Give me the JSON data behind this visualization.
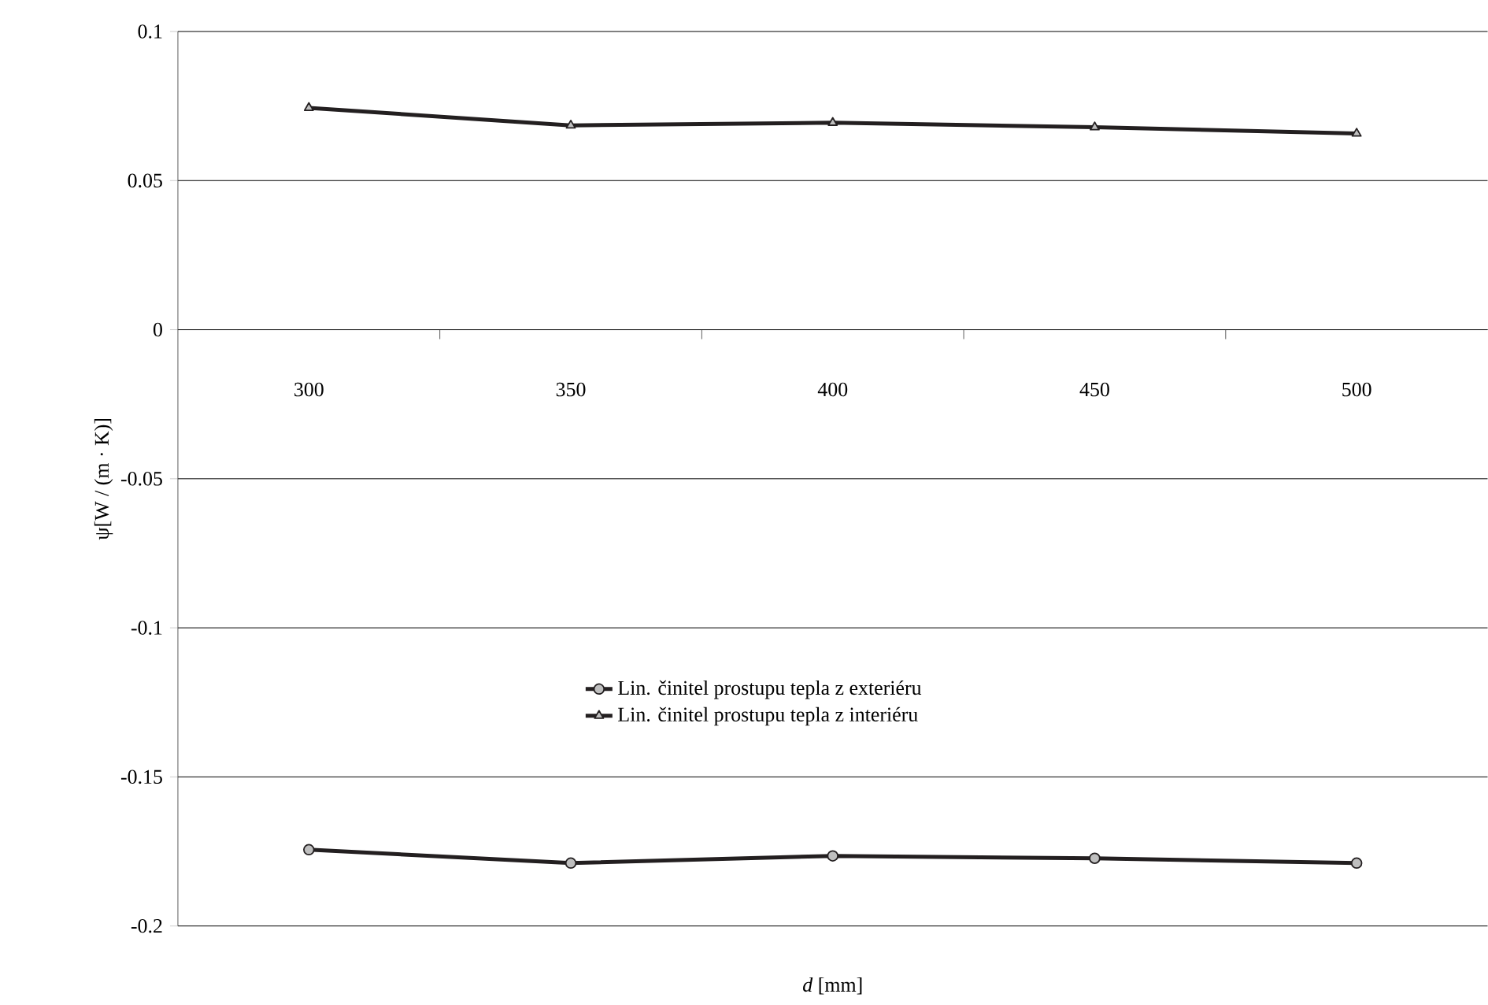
{
  "chart_data": {
    "type": "line",
    "xlabel": "*d* [mm]",
    "ylabel": "ψ[W / (m · K)]",
    "categories": [
      "300",
      "350",
      "400",
      "450",
      "500"
    ],
    "series": [
      {
        "name": "Lin. činitel prostupu tepla z exteriéru",
        "color": "#231f20",
        "marker": "circle",
        "values": [
          -0.1744,
          -0.1789,
          -0.1765,
          -0.1773,
          -0.1789
        ]
      },
      {
        "name": "Lin. činitel prostupu tepla z interiéru",
        "color": "#231f20",
        "marker": "triangle",
        "values": [
          0.0744,
          0.0685,
          0.0694,
          0.0679,
          0.0658
        ]
      }
    ],
    "ylim": [
      -0.2,
      0.1
    ],
    "yticks": [
      -0.2,
      -0.15,
      -0.1,
      -0.05,
      0,
      0.05,
      0.1
    ],
    "grid": "y",
    "legend": "bottom",
    "line_style": "solid"
  }
}
